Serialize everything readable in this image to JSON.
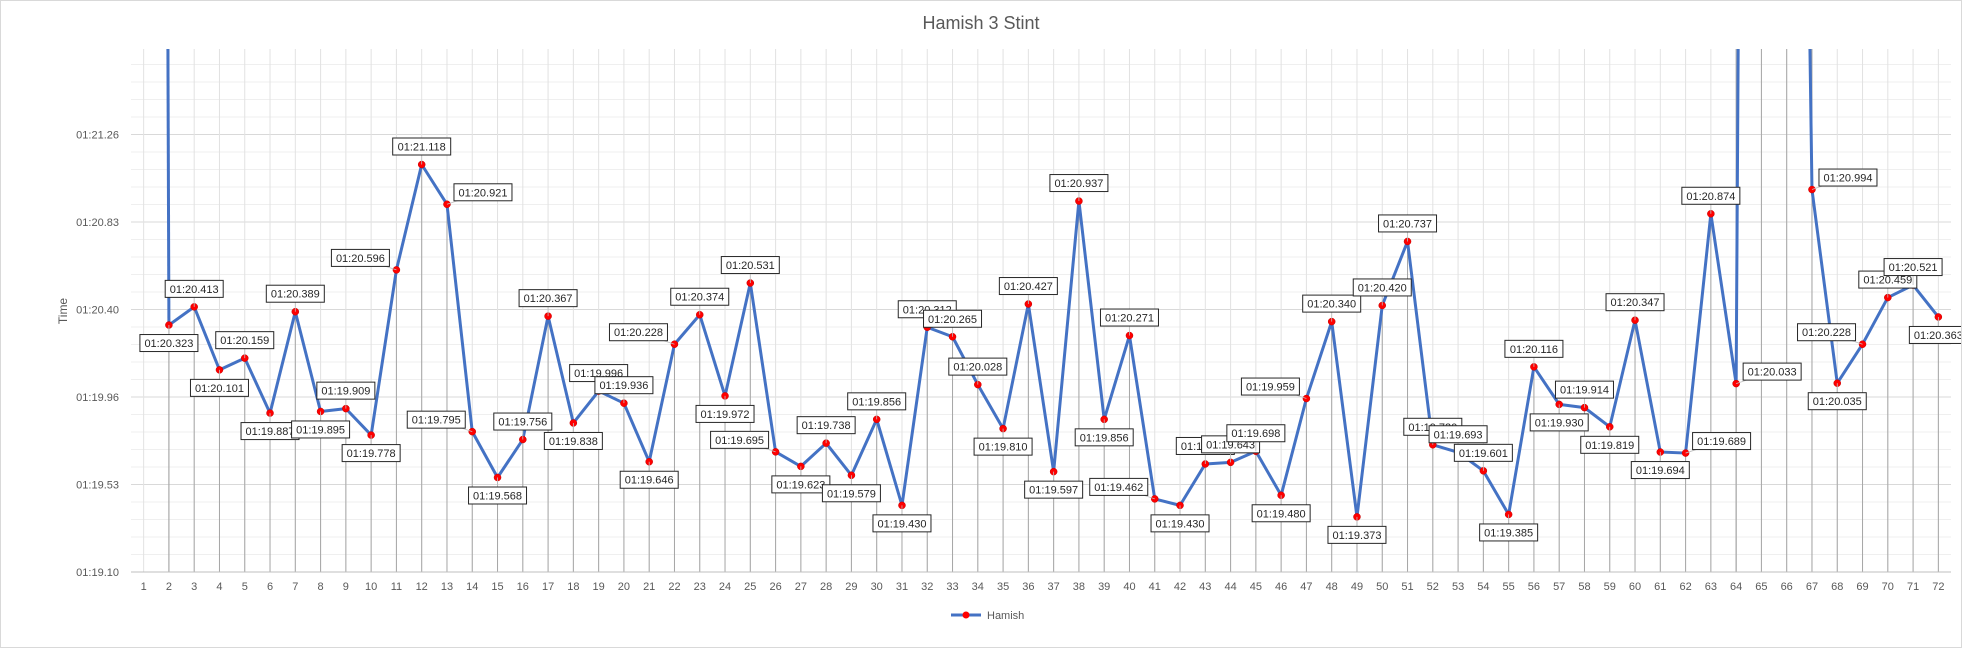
{
  "chart_data": {
    "type": "line",
    "title": "Hamish 3 Stint",
    "xlabel": "",
    "ylabel": "Time",
    "categories": [
      "1",
      "2",
      "3",
      "4",
      "5",
      "6",
      "7",
      "8",
      "9",
      "10",
      "11",
      "12",
      "13",
      "14",
      "15",
      "16",
      "17",
      "18",
      "19",
      "20",
      "21",
      "22",
      "23",
      "24",
      "25",
      "26",
      "27",
      "28",
      "29",
      "30",
      "31",
      "32",
      "33",
      "34",
      "35",
      "36",
      "37",
      "38",
      "39",
      "40",
      "41",
      "42",
      "43",
      "44",
      "45",
      "46",
      "47",
      "48",
      "49",
      "50",
      "51",
      "52",
      "53",
      "54",
      "55",
      "56",
      "57",
      "58",
      "59",
      "60",
      "61",
      "62",
      "63",
      "64",
      "65",
      "66",
      "67",
      "68",
      "69",
      "70",
      "71",
      "72"
    ],
    "y_ticks": [
      "01:19.10",
      "01:19.53",
      "01:19.96",
      "01:20.40",
      "01:20.83",
      "01:21.26"
    ],
    "ylim_seconds": [
      79.1,
      81.69
    ],
    "series": [
      {
        "name": "Hamish",
        "color": "#4472c4",
        "marker_color": "#ff0000",
        "points": [
          {
            "x": 2,
            "y": 80.323,
            "label": "01:20.323"
          },
          {
            "x": 3,
            "y": 80.413,
            "label": "01:20.413"
          },
          {
            "x": 4,
            "y": 80.101,
            "label": "01:20.101"
          },
          {
            "x": 5,
            "y": 80.159,
            "label": "01:20.159"
          },
          {
            "x": 6,
            "y": 79.887,
            "label": "01:19.887"
          },
          {
            "x": 7,
            "y": 80.389,
            "label": "01:20.389"
          },
          {
            "x": 8,
            "y": 79.895,
            "label": "01:19.895"
          },
          {
            "x": 9,
            "y": 79.909,
            "label": "01:19.909"
          },
          {
            "x": 10,
            "y": 79.778,
            "label": "01:19.778"
          },
          {
            "x": 11,
            "y": 80.596,
            "label": "01:20.596"
          },
          {
            "x": 12,
            "y": 81.118,
            "label": "01:21.118"
          },
          {
            "x": 13,
            "y": 80.921,
            "label": "01:20.921"
          },
          {
            "x": 14,
            "y": 79.795,
            "label": "01:19.795"
          },
          {
            "x": 15,
            "y": 79.568,
            "label": "01:19.568"
          },
          {
            "x": 16,
            "y": 79.756,
            "label": "01:19.756"
          },
          {
            "x": 17,
            "y": 80.367,
            "label": "01:20.367"
          },
          {
            "x": 18,
            "y": 79.838,
            "label": "01:19.838"
          },
          {
            "x": 19,
            "y": 79.996,
            "label": "01:19.996"
          },
          {
            "x": 20,
            "y": 79.936,
            "label": "01:19.936"
          },
          {
            "x": 21,
            "y": 79.646,
            "label": "01:19.646"
          },
          {
            "x": 22,
            "y": 80.228,
            "label": "01:20.228"
          },
          {
            "x": 23,
            "y": 80.374,
            "label": "01:20.374"
          },
          {
            "x": 24,
            "y": 79.972,
            "label": "01:19.972"
          },
          {
            "x": 25,
            "y": 80.531,
            "label": "01:20.531"
          },
          {
            "x": 26,
            "y": 79.695,
            "label": "01:19.695"
          },
          {
            "x": 27,
            "y": 79.623,
            "label": "01:19.623"
          },
          {
            "x": 28,
            "y": 79.738,
            "label": "01:19.738"
          },
          {
            "x": 29,
            "y": 79.579,
            "label": "01:19.579"
          },
          {
            "x": 30,
            "y": 79.856,
            "label": "01:19.856"
          },
          {
            "x": 31,
            "y": 79.43,
            "label": "01:19.430"
          },
          {
            "x": 32,
            "y": 80.312,
            "label": "01:20.312"
          },
          {
            "x": 33,
            "y": 80.265,
            "label": "01:20.265"
          },
          {
            "x": 34,
            "y": 80.028,
            "label": "01:20.028"
          },
          {
            "x": 35,
            "y": 79.81,
            "label": "01:19.810"
          },
          {
            "x": 36,
            "y": 80.427,
            "label": "01:20.427"
          },
          {
            "x": 37,
            "y": 79.597,
            "label": "01:19.597"
          },
          {
            "x": 38,
            "y": 80.937,
            "label": "01:20.937"
          },
          {
            "x": 39,
            "y": 79.856,
            "label": "01:19.856"
          },
          {
            "x": 40,
            "y": 80.271,
            "label": "01:20.271"
          },
          {
            "x": 41,
            "y": 79.462,
            "label": "01:19.462"
          },
          {
            "x": 42,
            "y": 79.43,
            "label": "01:19.430"
          },
          {
            "x": 43,
            "y": 79.635,
            "label": "01:19.635"
          },
          {
            "x": 44,
            "y": 79.643,
            "label": "01:19.643"
          },
          {
            "x": 45,
            "y": 79.698,
            "label": "01:19.698"
          },
          {
            "x": 46,
            "y": 79.48,
            "label": "01:19.480"
          },
          {
            "x": 47,
            "y": 79.959,
            "label": "01:19.959"
          },
          {
            "x": 48,
            "y": 80.34,
            "label": "01:20.340"
          },
          {
            "x": 49,
            "y": 79.373,
            "label": "01:19.373"
          },
          {
            "x": 50,
            "y": 80.42,
            "label": "01:20.420"
          },
          {
            "x": 51,
            "y": 80.737,
            "label": "01:20.737"
          },
          {
            "x": 52,
            "y": 79.73,
            "label": "01:19.730"
          },
          {
            "x": 53,
            "y": 79.693,
            "label": "01:19.693"
          },
          {
            "x": 54,
            "y": 79.601,
            "label": "01:19.601"
          },
          {
            "x": 55,
            "y": 79.385,
            "label": "01:19.385"
          },
          {
            "x": 56,
            "y": 80.116,
            "label": "01:20.116"
          },
          {
            "x": 57,
            "y": 79.93,
            "label": "01:19.930"
          },
          {
            "x": 58,
            "y": 79.914,
            "label": "01:19.914"
          },
          {
            "x": 59,
            "y": 79.819,
            "label": "01:19.819"
          },
          {
            "x": 60,
            "y": 80.347,
            "label": "01:20.347"
          },
          {
            "x": 61,
            "y": 79.694,
            "label": "01:19.694"
          },
          {
            "x": 62,
            "y": 79.689,
            "label": "01:19.689"
          },
          {
            "x": 63,
            "y": 80.874,
            "label": "01:20.874"
          },
          {
            "x": 64,
            "y": 80.033,
            "label": "01:20.033"
          },
          {
            "x": 67,
            "y": 80.994,
            "label": "01:20.994"
          },
          {
            "x": 68,
            "y": 80.035,
            "label": "01:20.035"
          },
          {
            "x": 69,
            "y": 80.228,
            "label": "01:20.228"
          },
          {
            "x": 70,
            "y": 80.459,
            "label": "01:20.459"
          },
          {
            "x": 71,
            "y": 80.521,
            "label": "01:20.521"
          },
          {
            "x": 72,
            "y": 80.363,
            "label": "01:20.363"
          }
        ],
        "offscale_segments": [
          {
            "from_x": 2,
            "direction": "up"
          },
          {
            "from_x": 64,
            "direction": "up"
          },
          {
            "to_x": 67,
            "direction": "down"
          }
        ]
      }
    ],
    "label_positions": {
      "2": "below",
      "3": "above",
      "4": "below",
      "5": "above",
      "6": "below",
      "7": "above",
      "8": "below",
      "9": "above",
      "10": "below",
      "11": "left",
      "12": "above",
      "13": "right",
      "14": "left",
      "15": "below",
      "16": "above",
      "17": "above",
      "18": "below",
      "19": "above",
      "20": "above",
      "21": "below",
      "22": "left",
      "23": "above",
      "24": "below",
      "25": "above",
      "26": "left",
      "27": "below",
      "28": "above",
      "29": "below",
      "30": "above",
      "31": "below",
      "32": "above",
      "33": "above",
      "34": "above",
      "35": "below",
      "36": "above",
      "37": "below",
      "38": "above",
      "39": "below",
      "40": "above",
      "41": "left",
      "42": "below",
      "43": "above",
      "44": "above",
      "45": "above",
      "46": "below",
      "47": "left",
      "48": "above",
      "49": "below",
      "50": "above",
      "51": "above",
      "52": "above",
      "53": "above",
      "54": "above",
      "55": "below",
      "56": "above",
      "57": "below",
      "58": "above",
      "59": "below",
      "60": "above",
      "61": "below",
      "62": "right",
      "63": "above",
      "64": "right",
      "67": "right",
      "68": "below",
      "69": "left",
      "70": "above",
      "71": "above",
      "72": "below"
    },
    "legend": {
      "entries": [
        "Hamish"
      ],
      "position": "bottom"
    },
    "vertical_gridlines": true,
    "horizontal_gridlines": true
  }
}
